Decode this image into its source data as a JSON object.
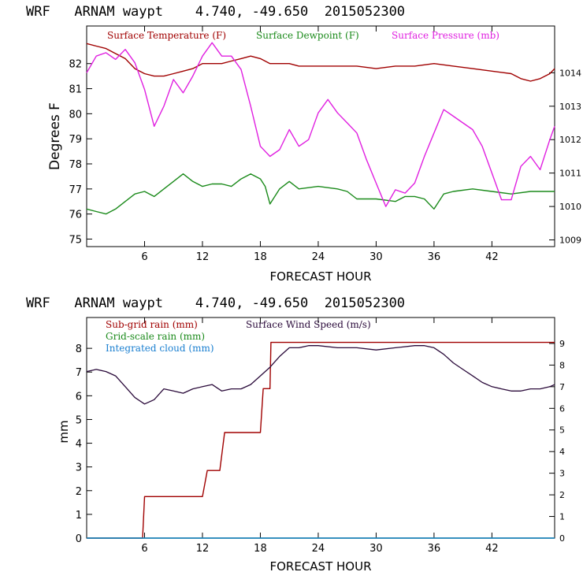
{
  "chart_data": [
    {
      "type": "line",
      "title": "WRF   ARNAM waypt    4.740, -49.650  2015052300",
      "xlabel": "FORECAST HOUR",
      "ylabel": "Degrees F",
      "xlim": [
        0,
        48.5
      ],
      "ylim": [
        74.7,
        83.5
      ],
      "y2lim": [
        1008.8,
        1015.4
      ],
      "xticks": [
        6,
        12,
        18,
        24,
        30,
        36,
        42
      ],
      "yticks": [
        75,
        76,
        77,
        78,
        79,
        80,
        81,
        82
      ],
      "y2ticks": [
        1009,
        1010,
        1011,
        1012,
        1013,
        1014
      ],
      "legend_placement": "top",
      "series": [
        {
          "name": "Surface Temperature (F)",
          "color": "#a00000",
          "axis": "left",
          "x": [
            0,
            1,
            2,
            3,
            4,
            5,
            6,
            7,
            8,
            9,
            10,
            11,
            12,
            13,
            14,
            15,
            16,
            17,
            18,
            19,
            20,
            21,
            22,
            24,
            26,
            28,
            30,
            32,
            34,
            36,
            38,
            40,
            42,
            44,
            45,
            46,
            47,
            48,
            48.5
          ],
          "y": [
            82.8,
            82.7,
            82.6,
            82.4,
            82.2,
            81.8,
            81.6,
            81.5,
            81.5,
            81.6,
            81.7,
            81.8,
            82.0,
            82.0,
            82.0,
            82.1,
            82.2,
            82.3,
            82.2,
            82.0,
            82.0,
            82.0,
            81.9,
            81.9,
            81.9,
            81.9,
            81.8,
            81.9,
            81.9,
            82.0,
            81.9,
            81.8,
            81.7,
            81.6,
            81.4,
            81.3,
            81.4,
            81.6,
            81.8
          ]
        },
        {
          "name": "Surface Dewpoint (F)",
          "color": "#1a8a1a",
          "axis": "left",
          "x": [
            0,
            1,
            2,
            3,
            4,
            5,
            6,
            7,
            8,
            9,
            10,
            11,
            12,
            13,
            14,
            15,
            16,
            17,
            18,
            18.5,
            19,
            20,
            21,
            22,
            24,
            26,
            27,
            28,
            29,
            30,
            32,
            33,
            34,
            35,
            36,
            37,
            38,
            40,
            42,
            44,
            46,
            48,
            48.5
          ],
          "y": [
            76.2,
            76.1,
            76.0,
            76.2,
            76.5,
            76.8,
            76.9,
            76.7,
            77.0,
            77.3,
            77.6,
            77.3,
            77.1,
            77.2,
            77.2,
            77.1,
            77.4,
            77.6,
            77.4,
            77.1,
            76.4,
            77.0,
            77.3,
            77.0,
            77.1,
            77.0,
            76.9,
            76.6,
            76.6,
            76.6,
            76.5,
            76.7,
            76.7,
            76.6,
            76.2,
            76.8,
            76.9,
            77.0,
            76.9,
            76.8,
            76.9,
            76.9,
            76.9
          ]
        },
        {
          "name": "Surface Pressure (mb)",
          "color": "#e020e0",
          "axis": "right",
          "x": [
            0,
            1,
            2,
            3,
            4,
            5,
            6,
            7,
            8,
            9,
            10,
            11,
            12,
            13,
            14,
            15,
            16,
            17,
            18,
            19,
            20,
            21,
            22,
            23,
            24,
            25,
            26,
            27,
            28,
            29,
            30,
            31,
            32,
            33,
            34,
            35,
            36,
            37,
            38,
            39,
            40,
            41,
            42,
            43,
            44,
            45,
            46,
            47,
            48,
            48.5
          ],
          "y": [
            1014.0,
            1014.5,
            1014.6,
            1014.4,
            1014.7,
            1014.3,
            1013.5,
            1012.4,
            1013.0,
            1013.8,
            1013.4,
            1013.9,
            1014.5,
            1014.9,
            1014.5,
            1014.5,
            1014.1,
            1013.0,
            1011.8,
            1011.5,
            1011.7,
            1012.3,
            1011.8,
            1012.0,
            1012.8,
            1013.2,
            1012.8,
            1012.5,
            1012.2,
            1011.4,
            1010.7,
            1010.0,
            1010.5,
            1010.4,
            1010.7,
            1011.5,
            1012.2,
            1012.9,
            1012.7,
            1012.5,
            1012.3,
            1011.8,
            1011.0,
            1010.2,
            1010.2,
            1011.2,
            1011.5,
            1011.1,
            1012.0,
            1012.4
          ]
        }
      ]
    },
    {
      "type": "line",
      "title": "WRF   ARNAM waypt    4.740, -49.650  2015052300",
      "xlabel": "FORECAST HOUR",
      "ylabel": "mm",
      "xlim": [
        0,
        48.5
      ],
      "ylim": [
        0,
        9.3
      ],
      "y2lim": [
        0,
        10.2
      ],
      "xticks": [
        6,
        12,
        18,
        24,
        30,
        36,
        42
      ],
      "yticks": [
        0,
        1,
        2,
        3,
        4,
        5,
        6,
        7,
        8
      ],
      "y2ticks": [
        0,
        1,
        2,
        3,
        4,
        5,
        6,
        7,
        8,
        9
      ],
      "legend_placement": "top-left",
      "series": [
        {
          "name": "Sub-grid rain (mm)",
          "color": "#a00000",
          "axis": "left",
          "step": true,
          "x": [
            0,
            5.8,
            6.0,
            12.0,
            12.5,
            13.8,
            14.3,
            18.0,
            18.3,
            19.0,
            19.1,
            48.5
          ],
          "y": [
            0,
            0,
            1.75,
            1.75,
            2.85,
            2.85,
            4.45,
            4.45,
            6.3,
            6.3,
            8.25,
            8.25
          ]
        },
        {
          "name": "Grid-scale rain (mm)",
          "color": "#1a8a1a",
          "axis": "left",
          "x": [
            0,
            48.5
          ],
          "y": [
            0,
            0
          ]
        },
        {
          "name": "Integrated cloud (mm)",
          "color": "#1a7fd0",
          "axis": "left",
          "x": [
            0,
            48.5
          ],
          "y": [
            0,
            0
          ]
        },
        {
          "name": "Surface Wind Speed (m/s)",
          "color": "#2a0a3a",
          "axis": "right",
          "x": [
            0,
            1,
            2,
            3,
            4,
            5,
            6,
            7,
            8,
            9,
            10,
            11,
            12,
            13,
            14,
            15,
            16,
            17,
            18,
            19,
            20,
            21,
            22,
            23,
            24,
            26,
            28,
            30,
            32,
            34,
            35,
            36,
            37,
            38,
            39,
            40,
            41,
            42,
            43,
            44,
            45,
            46,
            47,
            48,
            48.5
          ],
          "y": [
            7.7,
            7.8,
            7.7,
            7.5,
            7.0,
            6.5,
            6.2,
            6.4,
            6.9,
            6.8,
            6.7,
            6.9,
            7.0,
            7.1,
            6.8,
            6.9,
            6.9,
            7.1,
            7.5,
            7.9,
            8.4,
            8.8,
            8.8,
            8.9,
            8.9,
            8.8,
            8.8,
            8.7,
            8.8,
            8.9,
            8.9,
            8.8,
            8.5,
            8.1,
            7.8,
            7.5,
            7.2,
            7.0,
            6.9,
            6.8,
            6.8,
            6.9,
            6.9,
            7.0,
            7.1
          ]
        }
      ]
    }
  ]
}
